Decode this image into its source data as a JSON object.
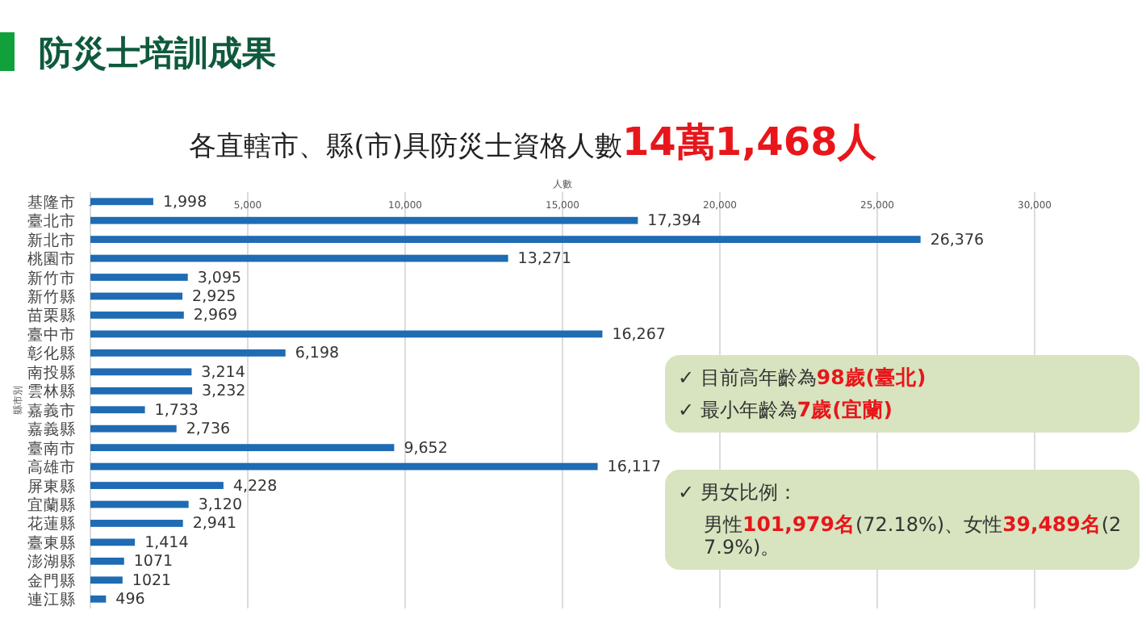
{
  "chart_data": {
    "type": "bar",
    "orientation": "horizontal",
    "title": "防災士培訓成果",
    "subtitle": "各直轄市、縣(市)具防災士資格人數14萬1,468人",
    "xlabel": "人數",
    "ylabel": "縣市別",
    "categories": [
      "基隆市",
      "臺北市",
      "新北市",
      "桃園市",
      "新竹市",
      "新竹縣",
      "苗栗縣",
      "臺中市",
      "彰化縣",
      "南投縣",
      "雲林縣",
      "嘉義市",
      "嘉義縣",
      "臺南市",
      "高雄市",
      "屏東縣",
      "宜蘭縣",
      "花蓮縣",
      "臺東縣",
      "澎湖縣",
      "金門縣",
      "連江縣"
    ],
    "values": [
      1998,
      17394,
      26376,
      13271,
      3095,
      2925,
      2969,
      16267,
      6198,
      3214,
      3232,
      1733,
      2736,
      9652,
      16117,
      4228,
      3120,
      2941,
      1414,
      1071,
      1021,
      496
    ],
    "value_labels": [
      "1,998",
      "17,394",
      "26,376",
      "13,271",
      "3,095",
      "2,925",
      "2,969",
      "16,267",
      "6,198",
      "3,214",
      "3,232",
      "1,733",
      "2,736",
      "9,652",
      "16,117",
      "4,228",
      "3,120",
      "2,941",
      "1,414",
      "1071",
      "1021",
      "496"
    ],
    "color": "#1f6bb4",
    "xlim": [
      0,
      30000
    ],
    "xticks": [
      {
        "value": 0,
        "label": "-"
      },
      {
        "value": 5000,
        "label": "5,000"
      },
      {
        "value": 10000,
        "label": "10,000"
      },
      {
        "value": 15000,
        "label": "15,000"
      },
      {
        "value": 20000,
        "label": "20,000"
      },
      {
        "value": 25000,
        "label": "25,000"
      },
      {
        "value": 30000,
        "label": "30,000"
      }
    ],
    "grid": "x",
    "annotations": [
      "✓  目前高年齡為98歲(臺北)",
      "✓  最小年齡為7歲(宜蘭)",
      "✓  男女比例：",
      "男性101,979名(72.18%)、女性39,489名(27.9%)。"
    ]
  }
}
